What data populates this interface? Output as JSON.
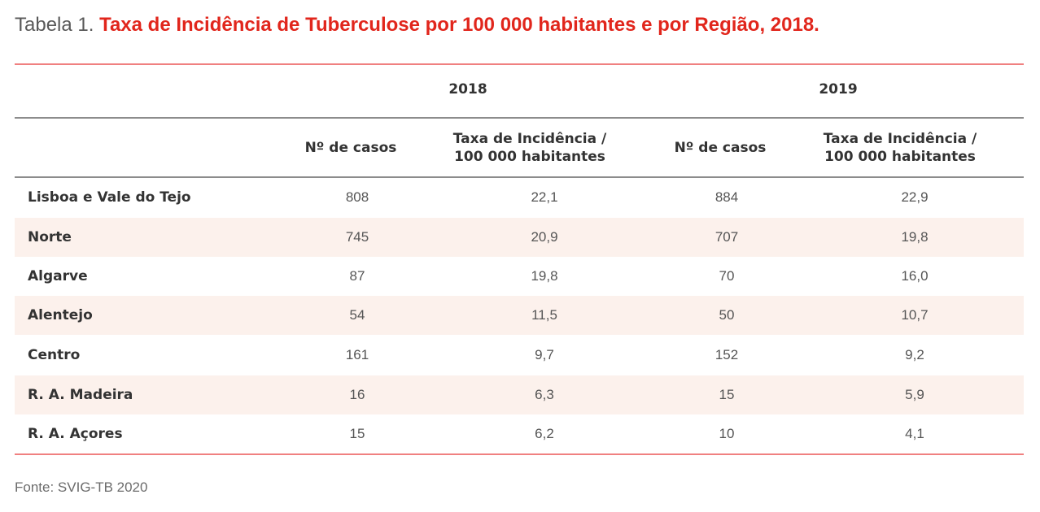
{
  "title": {
    "prefix": "Tabela 1. ",
    "main": "Taxa de Incidência de Tuberculose por 100 000 habitantes e por Região, 2018."
  },
  "years": [
    "2018",
    "2019"
  ],
  "columns": {
    "cases": "Nº de casos",
    "rate_line1": "Taxa de Incidência /",
    "rate_line2": "100 000 habitantes"
  },
  "rows": [
    {
      "region": "Lisboa e Vale do Tejo",
      "cases_2018": "808",
      "rate_2018": "22,1",
      "cases_2019": "884",
      "rate_2019": "22,9"
    },
    {
      "region": "Norte",
      "cases_2018": "745",
      "rate_2018": "20,9",
      "cases_2019": "707",
      "rate_2019": "19,8"
    },
    {
      "region": "Algarve",
      "cases_2018": "87",
      "rate_2018": "19,8",
      "cases_2019": "70",
      "rate_2019": "16,0"
    },
    {
      "region": "Alentejo",
      "cases_2018": "54",
      "rate_2018": "11,5",
      "cases_2019": "50",
      "rate_2019": "10,7"
    },
    {
      "region": "Centro",
      "cases_2018": "161",
      "rate_2018": "9,7",
      "cases_2019": "152",
      "rate_2019": "9,2"
    },
    {
      "region": "R. A. Madeira",
      "cases_2018": "16",
      "rate_2018": "6,3",
      "cases_2019": "15",
      "rate_2019": "5,9"
    },
    {
      "region": "R. A. Açores",
      "cases_2018": "15",
      "rate_2018": "6,2",
      "cases_2019": "10",
      "rate_2019": "4,1"
    }
  ],
  "source": "Fonte: SVIG-TB 2020"
}
